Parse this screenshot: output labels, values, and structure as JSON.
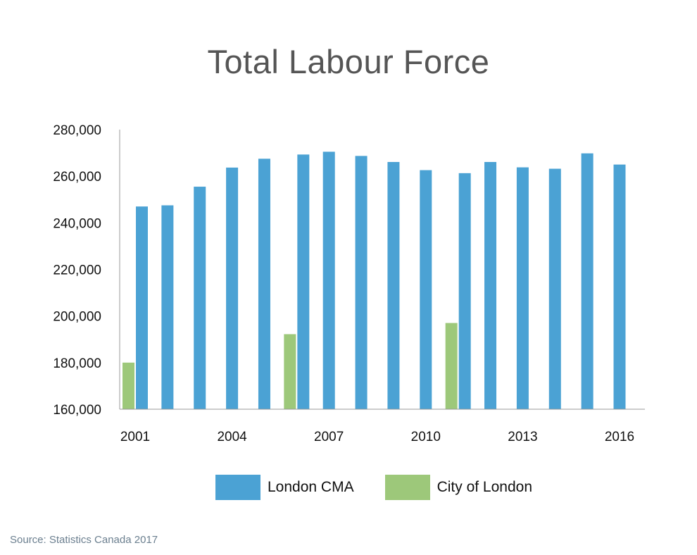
{
  "chart_data": {
    "type": "bar",
    "title": "Total Labour Force",
    "source": "Source: Statistics Canada 2017",
    "xlabel": "",
    "ylabel": "",
    "ylim": [
      160000,
      280000
    ],
    "y_ticks": [
      160000,
      180000,
      200000,
      220000,
      240000,
      260000,
      280000
    ],
    "y_tick_labels": [
      "160,000",
      "180,000",
      "200,000",
      "220,000",
      "240,000",
      "260,000",
      "280,000"
    ],
    "categories": [
      "2001",
      "2002",
      "2003",
      "2004",
      "2005",
      "2006",
      "2007",
      "2008",
      "2009",
      "2010",
      "2011",
      "2012",
      "2013",
      "2014",
      "2015",
      "2016"
    ],
    "x_tick_labels": [
      "2001",
      "2004",
      "2007",
      "2010",
      "2013",
      "2016"
    ],
    "series": [
      {
        "name": "London CMA",
        "color": "#4ba2d4",
        "values": [
          247000,
          247500,
          255500,
          263700,
          267500,
          269300,
          270500,
          268700,
          266100,
          262600,
          261300,
          266100,
          263800,
          263200,
          269800,
          265000
        ]
      },
      {
        "name": "City of London",
        "color": "#9dc87a",
        "values": [
          180000,
          null,
          null,
          null,
          null,
          192200,
          null,
          null,
          null,
          null,
          197000,
          null,
          null,
          null,
          null,
          null
        ]
      }
    ],
    "legend_position": "bottom",
    "grid": false
  }
}
